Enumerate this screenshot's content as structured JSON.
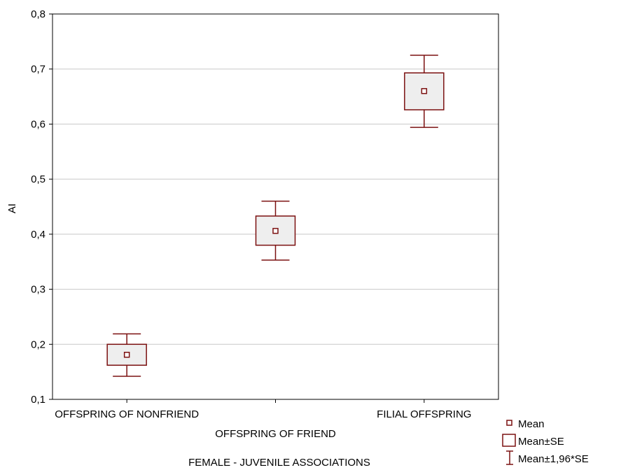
{
  "chart_data": {
    "type": "box",
    "title": "",
    "xlabel": "FEMALE - JUVENILE ASSOCIATIONS",
    "ylabel": "AI",
    "ylim": [
      0.1,
      0.8
    ],
    "yticks": [
      "0,1",
      "0,2",
      "0,3",
      "0,4",
      "0,5",
      "0,6",
      "0,7",
      "0,8"
    ],
    "ytick_values": [
      0.1,
      0.2,
      0.3,
      0.4,
      0.5,
      0.6,
      0.7,
      0.8
    ],
    "grid": true,
    "legend_position": "bottom-right",
    "colors": {
      "mark": "#7b1010",
      "box_fill": "#eeeeee",
      "grid": "#c8c8c8"
    },
    "categories": [
      "OFFSPRING OF NONFRIEND",
      "OFFSPRING OF FRIEND",
      "FILIAL OFFSPRING"
    ],
    "series": [
      {
        "mean": [
          0.181,
          0.406,
          0.66
        ],
        "se_low": [
          0.162,
          0.38,
          0.626
        ],
        "se_high": [
          0.2,
          0.433,
          0.693
        ],
        "ci_low": [
          0.142,
          0.353,
          0.594
        ],
        "ci_high": [
          0.219,
          0.46,
          0.725
        ]
      }
    ],
    "legend": [
      "Mean",
      "Mean±SE",
      "Mean±1,96*SE"
    ]
  }
}
